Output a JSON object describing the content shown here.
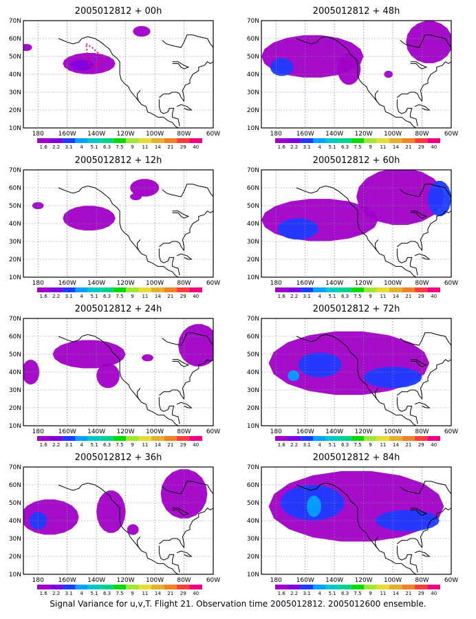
{
  "figure": {
    "caption": "Signal Variance for u,v,T. Flight 21. Observation time 2005012812. 2005012600 ensemble.",
    "colors": {
      "frame": "#000000",
      "grid": "#888888",
      "coast": "#000000",
      "flight_track": "#e8004a"
    }
  },
  "map_axes": {
    "lat_ticks": [
      "10N",
      "20N",
      "30N",
      "40N",
      "50N",
      "60N",
      "70N"
    ],
    "lon_ticks": [
      "180",
      "160W",
      "140W",
      "120W",
      "100W",
      "80W",
      "60W"
    ]
  },
  "colorbar": {
    "labels": [
      "1.6",
      "2.2",
      "3.1",
      "4",
      "5.1",
      "6.3",
      "7.5",
      "9",
      "11",
      "14",
      "21",
      "29",
      "40"
    ],
    "colors": [
      "#a000c8",
      "#8200dc",
      "#1e3cff",
      "#00a0ff",
      "#00c8c8",
      "#00d28c",
      "#00dc00",
      "#a0e632",
      "#e6dc32",
      "#e6af2d",
      "#f08228",
      "#fa3c3c",
      "#f00082"
    ]
  },
  "panels": [
    {
      "title": "2005012812 + 00h"
    },
    {
      "title": "2005012812 + 48h"
    },
    {
      "title": "2005012812 + 12h"
    },
    {
      "title": "2005012812 + 60h"
    },
    {
      "title": "2005012812 + 24h"
    },
    {
      "title": "2005012812 + 72h"
    },
    {
      "title": "2005012812 + 36h"
    },
    {
      "title": "2005012812 + 84h"
    }
  ]
}
